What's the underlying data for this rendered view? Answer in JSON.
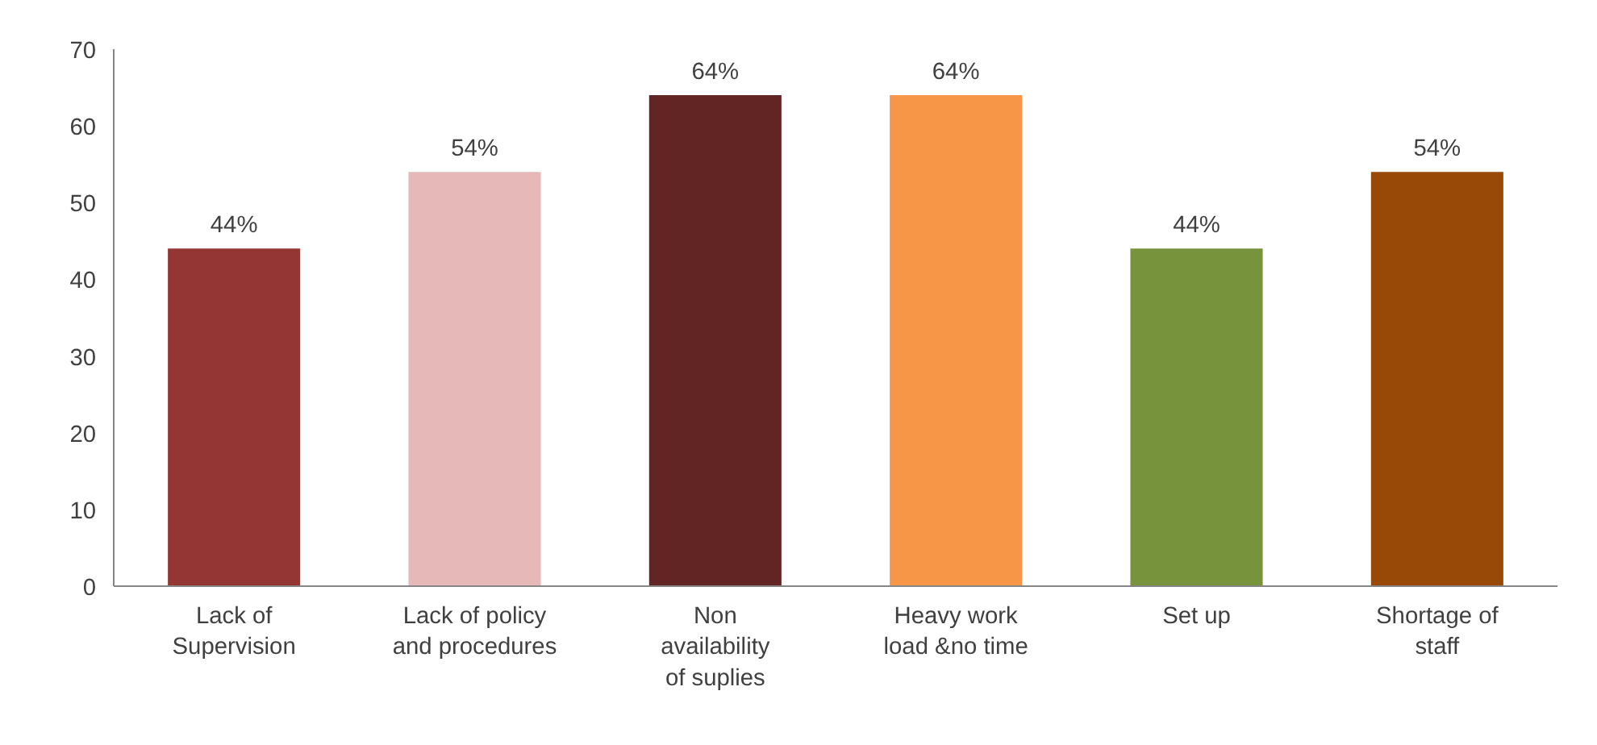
{
  "chart_data": {
    "type": "bar",
    "categories": [
      "Lack of Supervision",
      "Lack of policy and procedures",
      "Non availability of suplies",
      "Heavy work load &no time",
      "Set up",
      "Shortage of staff"
    ],
    "values": [
      44,
      54,
      64,
      64,
      44,
      54
    ],
    "colors": [
      "#943634",
      "#e6b9b8",
      "#632523",
      "#f79646",
      "#77933c",
      "#984807"
    ],
    "value_labels": [
      "44%",
      "54%",
      "64%",
      "64%",
      "44%",
      "54%"
    ],
    "ylim": [
      0,
      70
    ],
    "yticks": [
      0,
      10,
      20,
      30,
      40,
      50,
      60,
      70
    ],
    "grid": false
  }
}
